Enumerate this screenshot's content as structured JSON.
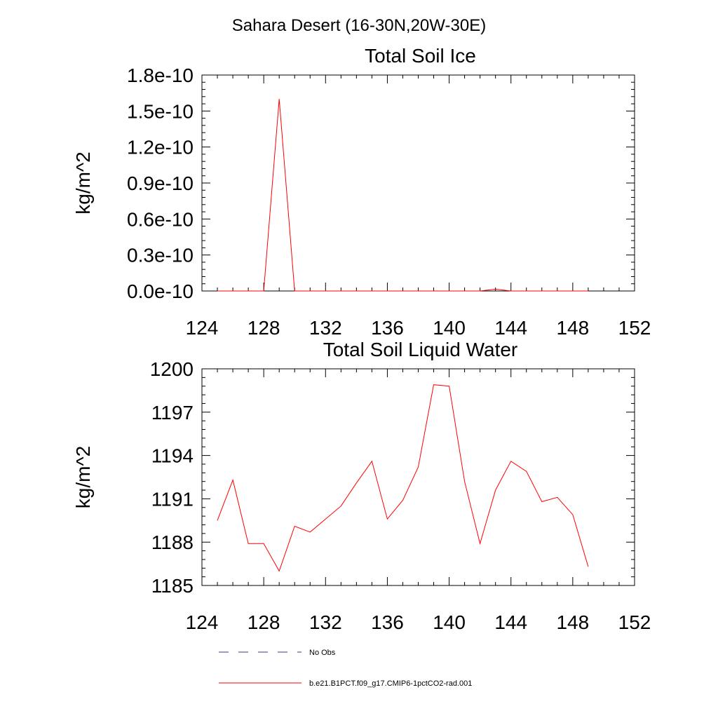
{
  "page_title": "Sahara Desert (16-30N,20W-30E)",
  "colors": {
    "model_line": "#ff0000",
    "obs_line": "#3a3f7a",
    "axes": "#000000"
  },
  "chart_data": [
    {
      "type": "line",
      "title": "Total Soil Ice",
      "ylabel": "kg/m^2",
      "xlabel": "",
      "xlim": [
        124,
        152
      ],
      "xticks": [
        124,
        128,
        132,
        136,
        140,
        144,
        148,
        152
      ],
      "xtick_labels": [
        "124",
        "128",
        "132",
        "136",
        "140",
        "144",
        "148",
        "152"
      ],
      "ylim": [
        0.0,
        1.8e-10
      ],
      "yticks": [
        0.0,
        3e-11,
        6e-11,
        9e-11,
        1.2e-10,
        1.5e-10,
        1.8e-10
      ],
      "ytick_labels": [
        "0.0e-10",
        "0.3e-10",
        "0.6e-10",
        "0.9e-10",
        "1.2e-10",
        "1.5e-10",
        "1.8e-10"
      ],
      "grid": false,
      "series": [
        {
          "name": "b.e21.B1PCT.f09_g17.CMIP6-1pctCO2-rad.001",
          "x": [
            125,
            126,
            127,
            128,
            129,
            130,
            131,
            132,
            133,
            134,
            135,
            136,
            137,
            138,
            139,
            140,
            141,
            142,
            143,
            144,
            145,
            146,
            147,
            148,
            149
          ],
          "values": [
            0,
            0,
            0,
            0,
            1.6e-10,
            0,
            0,
            0,
            0,
            0,
            0,
            0,
            0,
            0,
            0,
            0,
            0,
            0,
            1.5e-12,
            0,
            0,
            0,
            0,
            0,
            0
          ]
        }
      ]
    },
    {
      "type": "line",
      "title": "Total Soil Liquid Water",
      "ylabel": "kg/m^2",
      "xlabel": "",
      "xlim": [
        124,
        152
      ],
      "xticks": [
        124,
        128,
        132,
        136,
        140,
        144,
        148,
        152
      ],
      "xtick_labels": [
        "124",
        "128",
        "132",
        "136",
        "140",
        "144",
        "148",
        "152"
      ],
      "ylim": [
        1185,
        1200
      ],
      "yticks": [
        1185,
        1188,
        1191,
        1194,
        1197,
        1200
      ],
      "ytick_labels": [
        "1185",
        "1188",
        "1191",
        "1194",
        "1197",
        "1200"
      ],
      "grid": false,
      "series": [
        {
          "name": "b.e21.B1PCT.f09_g17.CMIP6-1pctCO2-rad.001",
          "x": [
            125,
            126,
            127,
            128,
            129,
            130,
            131,
            132,
            133,
            134,
            135,
            136,
            137,
            138,
            139,
            140,
            141,
            142,
            143,
            144,
            145,
            146,
            147,
            148,
            149
          ],
          "values": [
            1189.5,
            1192.3,
            1187.9,
            1187.9,
            1186.0,
            1189.1,
            1188.7,
            1189.6,
            1190.5,
            1192.1,
            1193.6,
            1189.6,
            1190.9,
            1193.2,
            1198.9,
            1198.8,
            1192.2,
            1187.9,
            1191.6,
            1193.6,
            1192.9,
            1190.8,
            1191.1,
            1189.9,
            1186.3
          ]
        }
      ]
    }
  ],
  "legend": {
    "placement": "bottom",
    "entries": [
      {
        "label": "No Obs",
        "style": "dashed",
        "color": "#3a3f7a"
      },
      {
        "label": "b.e21.B1PCT.f09_g17.CMIP6-1pctCO2-rad.001",
        "style": "solid",
        "color": "#ff0000"
      }
    ]
  }
}
